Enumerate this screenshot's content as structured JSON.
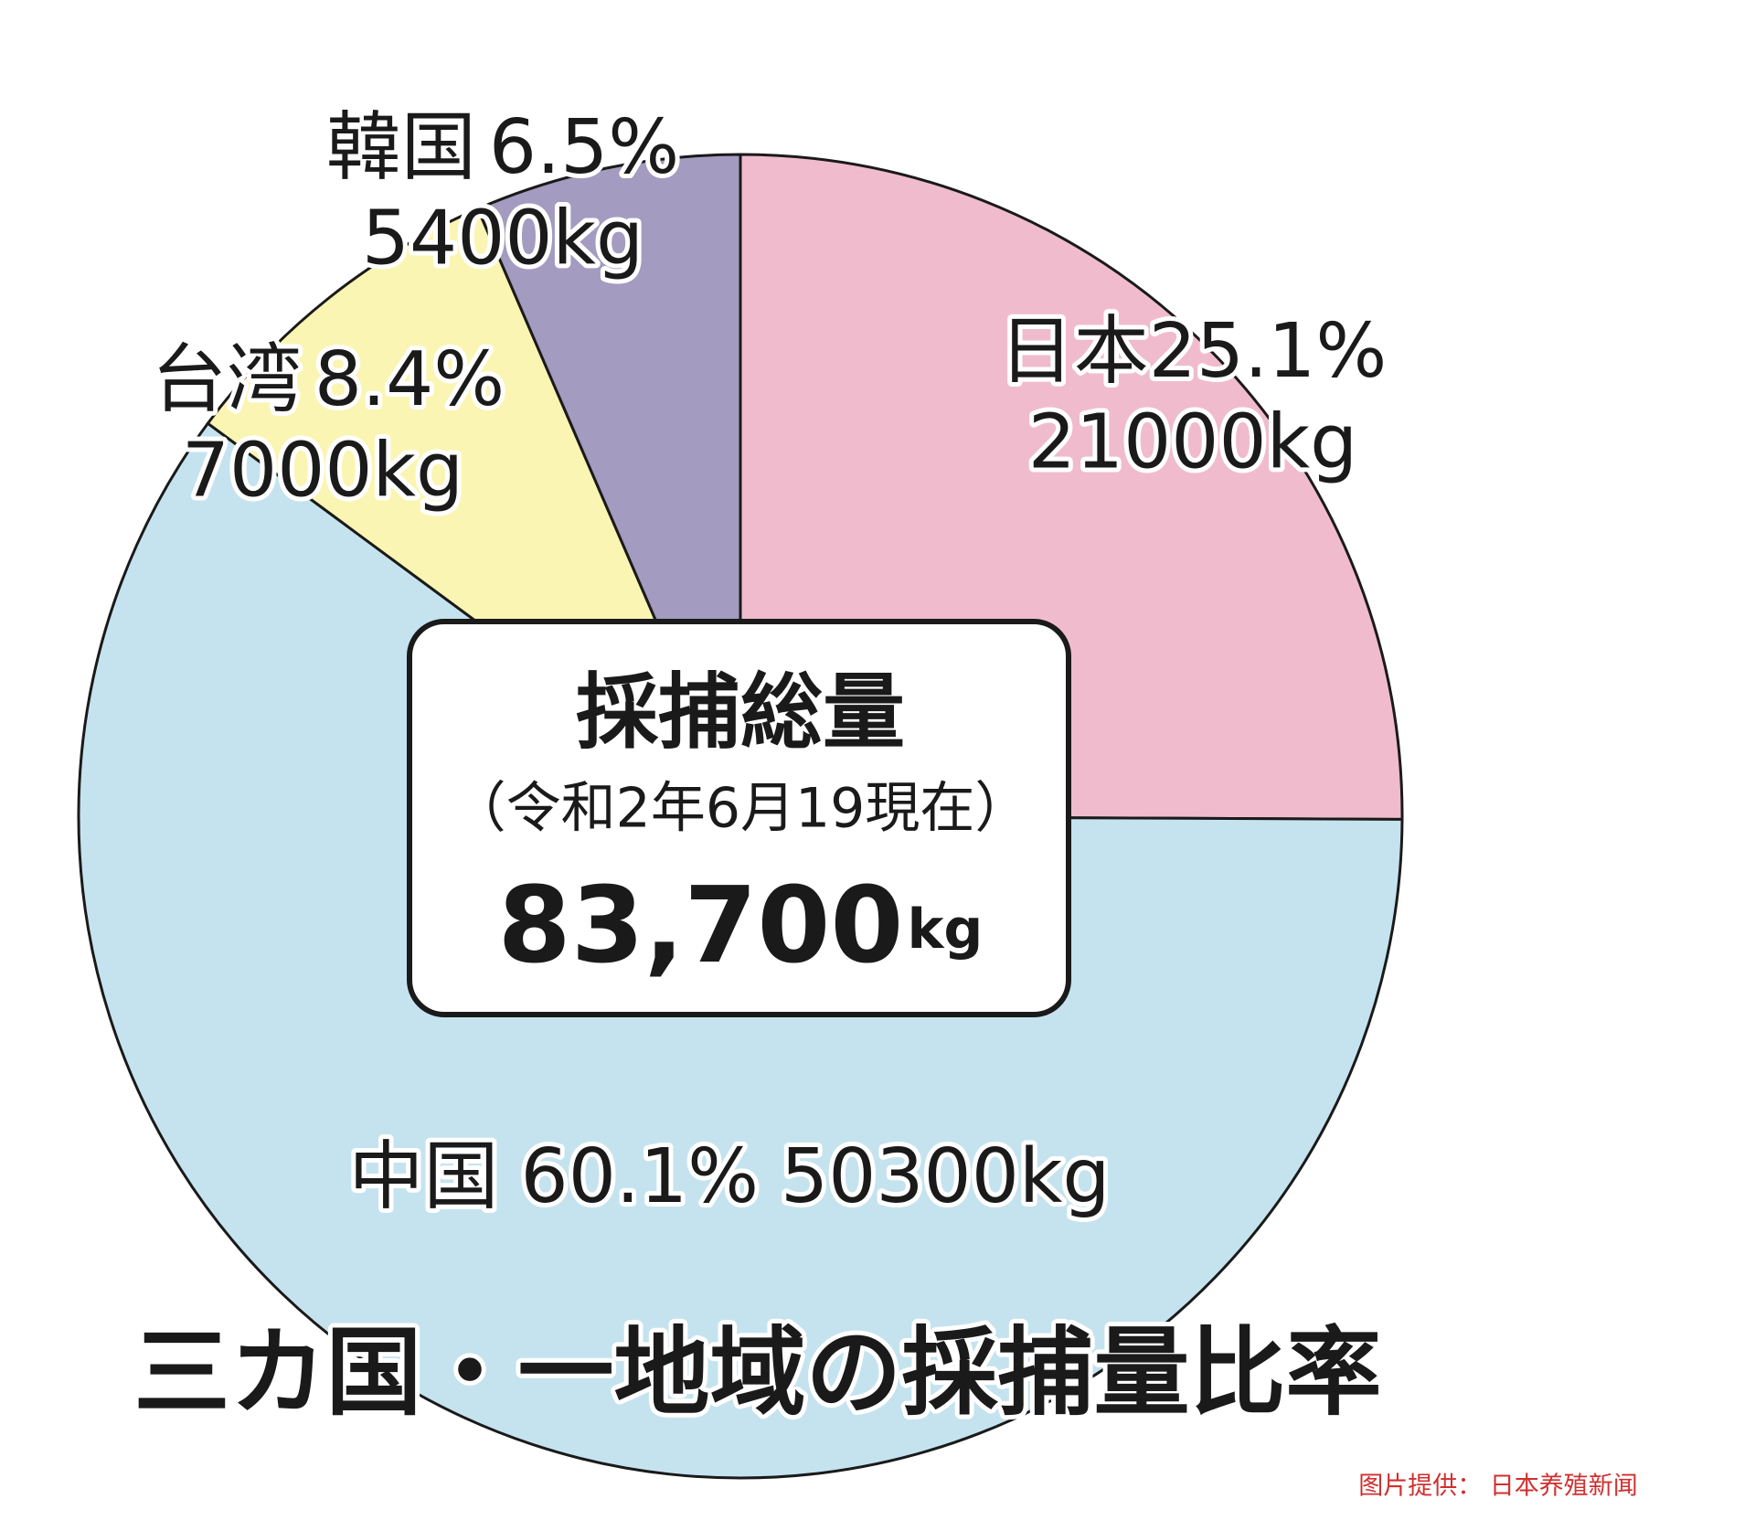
{
  "chart_data": {
    "type": "pie",
    "title": "三カ国・一地域の採捕量比率",
    "categories": [
      "日本",
      "中国",
      "台湾",
      "韓国"
    ],
    "values": [
      25.1,
      60.1,
      8.4,
      6.5
    ],
    "value_labels": [
      "25.1%",
      "60.1%",
      "8.4%",
      "6.5%"
    ],
    "amount_labels": [
      "21000kg",
      "50300kg",
      "7000kg",
      "5400kg"
    ],
    "colors": [
      "#f0bccd",
      "#c5e3ef",
      "#fbf5b3",
      "#a39bc0"
    ],
    "center_label": {
      "title": "採捕総量",
      "date": "（令和2年6月19現在）",
      "total": "83,700",
      "unit": "kg"
    }
  },
  "credit": "图片提供： 日本养殖新闻"
}
